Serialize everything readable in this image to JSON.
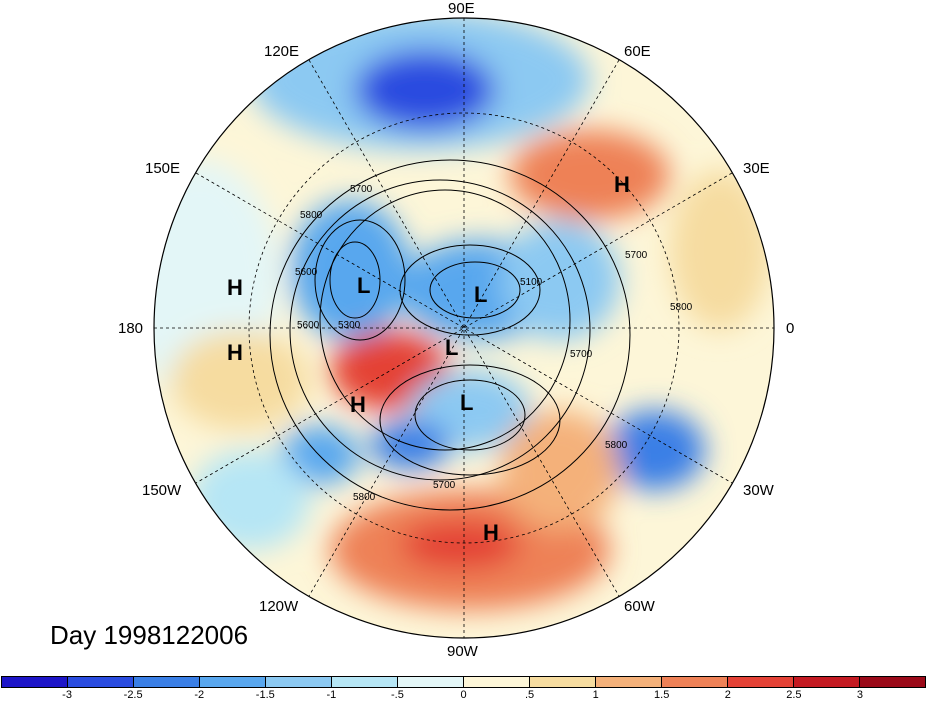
{
  "title": "Day 1998122006",
  "longitude_labels": [
    "90E",
    "60E",
    "30E",
    "0",
    "30W",
    "60W",
    "90W",
    "120W",
    "150W",
    "180",
    "150E",
    "120E"
  ],
  "pressure_labels": [
    "H",
    "H",
    "H",
    "H",
    "H",
    "L",
    "L",
    "L",
    "L"
  ],
  "contour_labels": [
    "5700",
    "5800",
    "5600",
    "5600",
    "5300",
    "5700",
    "5700",
    "5800",
    "5800",
    "5800",
    "5700",
    "5100"
  ],
  "colorbar": {
    "ticks": [
      "-3",
      "-2.5",
      "-2",
      "-1.5",
      "-1",
      "-.5",
      "0",
      ".5",
      "1",
      "1.5",
      "2",
      "2.5",
      "3"
    ],
    "colors": [
      "#1d15c8",
      "#2a4ce0",
      "#3a7fe6",
      "#59a7ee",
      "#8cc9f2",
      "#b6e6f5",
      "#e3f6f7",
      "#fdf6d8",
      "#f6dca0",
      "#f4b17a",
      "#ee8157",
      "#e44236",
      "#c41a22",
      "#9b0a19"
    ]
  }
}
